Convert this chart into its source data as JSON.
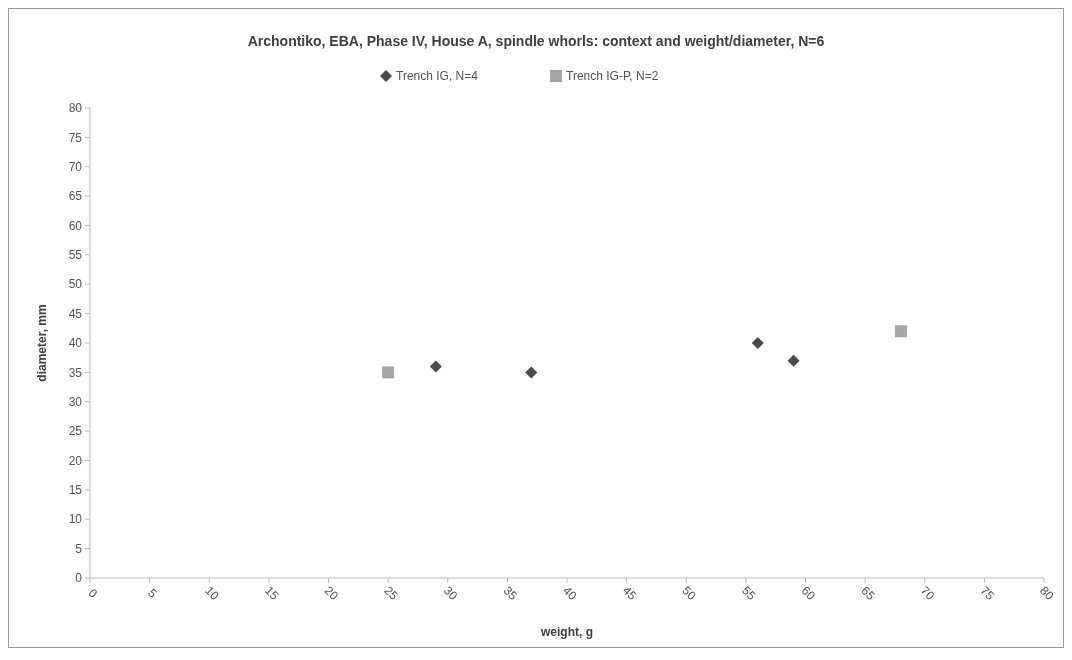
{
  "chart_data": {
    "type": "scatter",
    "title": "Archontiko, EBA, Phase IV, House A, spindle whorls: context and weight/diameter, N=6",
    "xlabel": "weight, g",
    "ylabel": "diameter, mm",
    "series": [
      {
        "name": "Trench IG, N=4",
        "color": "#4a4a4a",
        "marker": "diamond",
        "x": [
          29,
          37,
          56,
          59
        ],
        "values": [
          36,
          35,
          40,
          37
        ]
      },
      {
        "name": "Trench IG-P, N=2",
        "color": "#a6a6a6",
        "marker": "square",
        "x": [
          25,
          68
        ],
        "values": [
          35,
          42
        ]
      }
    ],
    "xlim": [
      0,
      80
    ],
    "xticks": [
      0,
      5,
      10,
      15,
      20,
      25,
      30,
      35,
      40,
      45,
      50,
      55,
      60,
      65,
      70,
      75,
      80
    ],
    "ylim": [
      0,
      80
    ],
    "yticks": [
      0,
      5,
      10,
      15,
      20,
      25,
      30,
      35,
      40,
      45,
      50,
      55,
      60,
      65,
      70,
      75,
      80
    ],
    "legend": "top",
    "grid": false
  }
}
